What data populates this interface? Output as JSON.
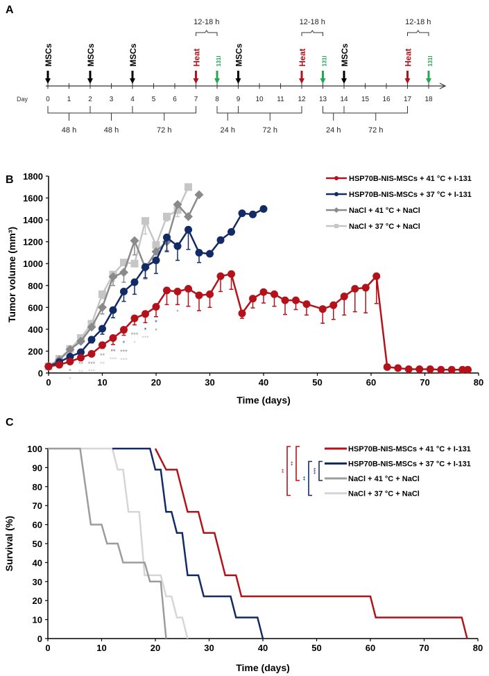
{
  "panel_labels": {
    "a": "A",
    "b": "B",
    "c": "C"
  },
  "colors": {
    "red": "#b4121b",
    "navy": "#122a66",
    "dark_gray": "#8a8a8a",
    "light_gray": "#c6c6c6",
    "green": "#22a852"
  },
  "timeline": {
    "day_label": "Day",
    "days": [
      "0",
      "1",
      "2",
      "3",
      "4",
      "5",
      "6",
      "7",
      "8",
      "9",
      "10",
      "11",
      "12",
      "13",
      "14",
      "15",
      "16",
      "17",
      "18"
    ],
    "events": [
      {
        "day": 0,
        "label": "MSCs",
        "kind": "msc"
      },
      {
        "day": 2,
        "label": "MSCs",
        "kind": "msc"
      },
      {
        "day": 4,
        "label": "MSCs",
        "kind": "msc"
      },
      {
        "day": 7,
        "label": "Heat",
        "kind": "heat"
      },
      {
        "day": 8,
        "label": "131I",
        "kind": "iodine"
      },
      {
        "day": 9,
        "label": "MSCs",
        "kind": "msc"
      },
      {
        "day": 12,
        "label": "Heat",
        "kind": "heat"
      },
      {
        "day": 13,
        "label": "131I",
        "kind": "iodine"
      },
      {
        "day": 14,
        "label": "MSCs",
        "kind": "msc"
      },
      {
        "day": 17,
        "label": "Heat",
        "kind": "heat"
      },
      {
        "day": 18,
        "label": "131I",
        "kind": "iodine"
      }
    ],
    "top_intervals": [
      {
        "from": 7,
        "to": 8,
        "label": "12-18 h"
      },
      {
        "from": 12,
        "to": 13,
        "label": "12-18 h"
      },
      {
        "from": 17,
        "to": 18,
        "label": "12-18 h"
      }
    ],
    "bottom_intervals": [
      {
        "from": 0,
        "to": 2,
        "label": "48 h"
      },
      {
        "from": 2,
        "to": 4,
        "label": "48 h"
      },
      {
        "from": 4,
        "to": 7,
        "label": "72 h"
      },
      {
        "from": 8,
        "to": 9,
        "label": "24 h"
      },
      {
        "from": 9,
        "to": 12,
        "label": "72 h"
      },
      {
        "from": 13,
        "to": 14,
        "label": "24 h"
      },
      {
        "from": 14,
        "to": 17,
        "label": "72 h"
      }
    ]
  },
  "chart_data": [
    {
      "type": "line",
      "xlabel": "Time (days)",
      "ylabel": "Tumor volume (mm³)",
      "xlim": [
        0,
        80
      ],
      "ylim": [
        0,
        1800
      ],
      "xticks": [
        0,
        10,
        20,
        30,
        40,
        50,
        60,
        70,
        80
      ],
      "yticks": [
        0,
        200,
        400,
        600,
        800,
        1000,
        1200,
        1400,
        1600,
        1800
      ],
      "grid": false,
      "legend": "top-right",
      "series": [
        {
          "name": "HSP70B-NIS-MSCs + 41 °C + I-131",
          "color": "#b4121b",
          "marker": "circle",
          "x": [
            0,
            2,
            4,
            6,
            8,
            10,
            12,
            14,
            16,
            18,
            20,
            22,
            24,
            26,
            28,
            30,
            32,
            34,
            36,
            38,
            40,
            42,
            44,
            46,
            48,
            51,
            53,
            55,
            57,
            59,
            61,
            63,
            65,
            67,
            69,
            71,
            73,
            75,
            77,
            78
          ],
          "y": [
            60,
            75,
            105,
            140,
            175,
            255,
            320,
            395,
            500,
            540,
            605,
            755,
            745,
            770,
            710,
            720,
            885,
            905,
            545,
            680,
            740,
            720,
            665,
            665,
            630,
            585,
            620,
            700,
            770,
            780,
            885,
            55,
            45,
            35,
            35,
            35,
            30,
            30,
            30,
            30
          ],
          "err": [
            0,
            10,
            15,
            25,
            25,
            30,
            60,
            50,
            60,
            80,
            90,
            130,
            120,
            160,
            140,
            120,
            140,
            140,
            45,
            85,
            100,
            110,
            130,
            85,
            100,
            130,
            130,
            170,
            210,
            230,
            250,
            0,
            0,
            0,
            0,
            0,
            0,
            0,
            0,
            0
          ]
        },
        {
          "name": "HSP70B-NIS-MSCs + 37 °C + I-131",
          "color": "#122a66",
          "marker": "circle",
          "x": [
            0,
            2,
            4,
            6,
            8,
            10,
            12,
            14,
            16,
            18,
            20,
            22,
            24,
            26,
            28,
            30,
            32,
            34,
            36,
            38,
            40
          ],
          "y": [
            60,
            100,
            150,
            190,
            305,
            405,
            575,
            745,
            830,
            970,
            1030,
            1240,
            1160,
            1310,
            1100,
            1090,
            1215,
            1290,
            1460,
            1450,
            1500
          ],
          "err": [
            0,
            0,
            20,
            30,
            30,
            50,
            70,
            90,
            110,
            100,
            120,
            130,
            130,
            180,
            90,
            0,
            0,
            0,
            0,
            0,
            0
          ]
        },
        {
          "name": "NaCl + 41 °C + NaCl",
          "color": "#8a8a8a",
          "marker": "diamond",
          "x": [
            0,
            2,
            4,
            6,
            8,
            10,
            12,
            14,
            16,
            18,
            20,
            22,
            24,
            26,
            28
          ],
          "y": [
            60,
            120,
            215,
            290,
            420,
            600,
            880,
            920,
            1210,
            960,
            1110,
            1200,
            1540,
            1430,
            1630
          ],
          "err": [
            0,
            0,
            20,
            20,
            20,
            60,
            80,
            90,
            130,
            100,
            0,
            80,
            0,
            0,
            0
          ]
        },
        {
          "name": "NaCl + 37 °C + NaCl",
          "color": "#c6c6c6",
          "marker": "square",
          "x": [
            0,
            2,
            4,
            6,
            8,
            10,
            12,
            14,
            16,
            18,
            20,
            22,
            24,
            26
          ],
          "y": [
            60,
            130,
            220,
            320,
            450,
            720,
            900,
            1010,
            1000,
            1390,
            1170,
            1430,
            1490,
            1700
          ],
          "err": [
            0,
            0,
            20,
            20,
            20,
            40,
            60,
            0,
            0,
            120,
            0,
            40,
            60,
            0
          ]
        }
      ],
      "annotations": [
        {
          "x": 4,
          "y": 30,
          "text": "*",
          "color": "#8a8a8a"
        },
        {
          "x": 4,
          "y": -45,
          "text": "*",
          "color": "#c6c6c6"
        },
        {
          "x": 6,
          "y": 95,
          "text": "**",
          "color": "#8a8a8a"
        },
        {
          "x": 6,
          "y": 20,
          "text": "**",
          "color": "#c6c6c6"
        },
        {
          "x": 8,
          "y": 95,
          "text": "***",
          "color": "#8a8a8a"
        },
        {
          "x": 8,
          "y": 25,
          "text": "***",
          "color": "#c6c6c6"
        },
        {
          "x": 10,
          "y": 170,
          "text": "**",
          "color": "#8a8a8a"
        },
        {
          "x": 10,
          "y": 95,
          "text": "**",
          "color": "#c6c6c6"
        },
        {
          "x": 12,
          "y": 210,
          "text": "**",
          "color": "#7a5a70"
        },
        {
          "x": 12,
          "y": 135,
          "text": "***",
          "color": "#c6c6c6"
        },
        {
          "x": 14,
          "y": 285,
          "text": "*",
          "color": "#1f5f6b"
        },
        {
          "x": 14,
          "y": 205,
          "text": "***",
          "color": "#8a8a8a"
        },
        {
          "x": 14,
          "y": 130,
          "text": "***",
          "color": "#c6c6c6"
        },
        {
          "x": 16,
          "y": 360,
          "text": "***",
          "color": "#8a8a8a"
        },
        {
          "x": 16,
          "y": 285,
          "text": "*",
          "color": "#c6c6c6"
        },
        {
          "x": 18,
          "y": 405,
          "text": "*",
          "color": "#122a66"
        },
        {
          "x": 18,
          "y": 333,
          "text": "***",
          "color": "#c6c6c6"
        },
        {
          "x": 20,
          "y": 475,
          "text": "*",
          "color": "#122a66"
        },
        {
          "x": 20,
          "y": 400,
          "text": "*",
          "color": "#8a8a8a"
        },
        {
          "x": 24,
          "y": 570,
          "text": "*",
          "color": "#8a8a8a"
        }
      ]
    },
    {
      "type": "line",
      "step": true,
      "xlabel": "Time (days)",
      "ylabel": "Survival (%)",
      "xlim": [
        0,
        80
      ],
      "ylim": [
        0,
        100
      ],
      "xticks": [
        0,
        10,
        20,
        30,
        40,
        50,
        60,
        70,
        80
      ],
      "yticks": [
        0,
        10,
        20,
        30,
        40,
        50,
        60,
        70,
        80,
        90,
        100
      ],
      "grid": false,
      "legend": "top-right",
      "series": [
        {
          "name": "HSP70B-NIS-MSCs + 41 °C + I-131",
          "color": "#b4121b",
          "points": [
            [
              20,
              100
            ],
            [
              22,
              88.9
            ],
            [
              24,
              88.9
            ],
            [
              26,
              66.7
            ],
            [
              28,
              66.7
            ],
            [
              29,
              55.6
            ],
            [
              31,
              55.6
            ],
            [
              33,
              33.3
            ],
            [
              35,
              33.3
            ],
            [
              36,
              22.2
            ],
            [
              60,
              22.2
            ],
            [
              61,
              11.1
            ],
            [
              77,
              11.1
            ],
            [
              78,
              0
            ]
          ]
        },
        {
          "name": "HSP70B-NIS-MSCs + 37 °C + I-131",
          "color": "#122a66",
          "points": [
            [
              12,
              100
            ],
            [
              19,
              100
            ],
            [
              20,
              88.9
            ],
            [
              21,
              88.9
            ],
            [
              22,
              66.7
            ],
            [
              23,
              66.7
            ],
            [
              24,
              55.6
            ],
            [
              25,
              55.6
            ],
            [
              26,
              33.3
            ],
            [
              28,
              33.3
            ],
            [
              29,
              22.2
            ],
            [
              34,
              22.2
            ],
            [
              35,
              11.1
            ],
            [
              39,
              11.1
            ],
            [
              40,
              0
            ]
          ]
        },
        {
          "name": "NaCl + 41 °C + NaCl",
          "color": "#9c9c9c",
          "points": [
            [
              0,
              100
            ],
            [
              6,
              100
            ],
            [
              8,
              60
            ],
            [
              10,
              60
            ],
            [
              11,
              50
            ],
            [
              13,
              50
            ],
            [
              14,
              40
            ],
            [
              18,
              40
            ],
            [
              19,
              30
            ],
            [
              21,
              30
            ],
            [
              22,
              0
            ]
          ]
        },
        {
          "name": "NaCl + 37 °C + NaCl",
          "color": "#d6d6d6",
          "points": [
            [
              0,
              100
            ],
            [
              12,
              100
            ],
            [
              13,
              88.9
            ],
            [
              14,
              88.9
            ],
            [
              15,
              66.7
            ],
            [
              17,
              66.7
            ],
            [
              18,
              33.3
            ],
            [
              21,
              33.3
            ],
            [
              22,
              22.2
            ],
            [
              23,
              22.2
            ],
            [
              24,
              11.1
            ],
            [
              25,
              11.1
            ],
            [
              26,
              0
            ]
          ]
        }
      ],
      "significance": [
        {
          "from": 0,
          "to": 3,
          "text": "**",
          "color": "#b4121b"
        },
        {
          "from": 0,
          "to": 2,
          "text": "**",
          "color": "#b4121b"
        },
        {
          "from": 1,
          "to": 3,
          "text": "**",
          "color": "#122a66"
        },
        {
          "from": 1,
          "to": 2,
          "text": "***",
          "color": "#122a66"
        }
      ]
    }
  ]
}
